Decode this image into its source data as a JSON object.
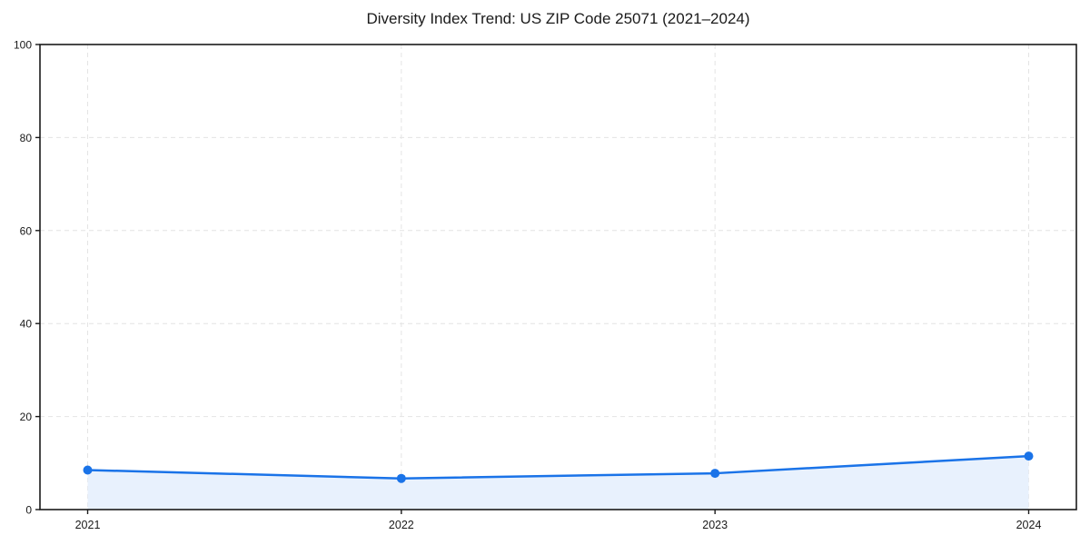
{
  "chart_data": {
    "type": "line",
    "title": "Diversity Index Trend: US ZIP Code 25071 (2021–2024)",
    "categories": [
      "2021",
      "2022",
      "2023",
      "2024"
    ],
    "values": [
      8.5,
      6.7,
      7.8,
      11.5
    ],
    "xlabel": "",
    "ylabel": "",
    "ylim": [
      0,
      100
    ],
    "yticks": [
      0,
      20,
      40,
      60,
      80,
      100
    ],
    "grid": "on",
    "grid_style": "dashed",
    "legend_position": "none",
    "marker": "circle",
    "colors": {
      "line": "#1a73e8",
      "marker": "#1a73e8",
      "area_fill": "#e8f1fd",
      "grid": "#e4e4e4",
      "axis": "#1a1a1a",
      "tick_label": "#1a1a1a",
      "background": "#ffffff"
    }
  }
}
